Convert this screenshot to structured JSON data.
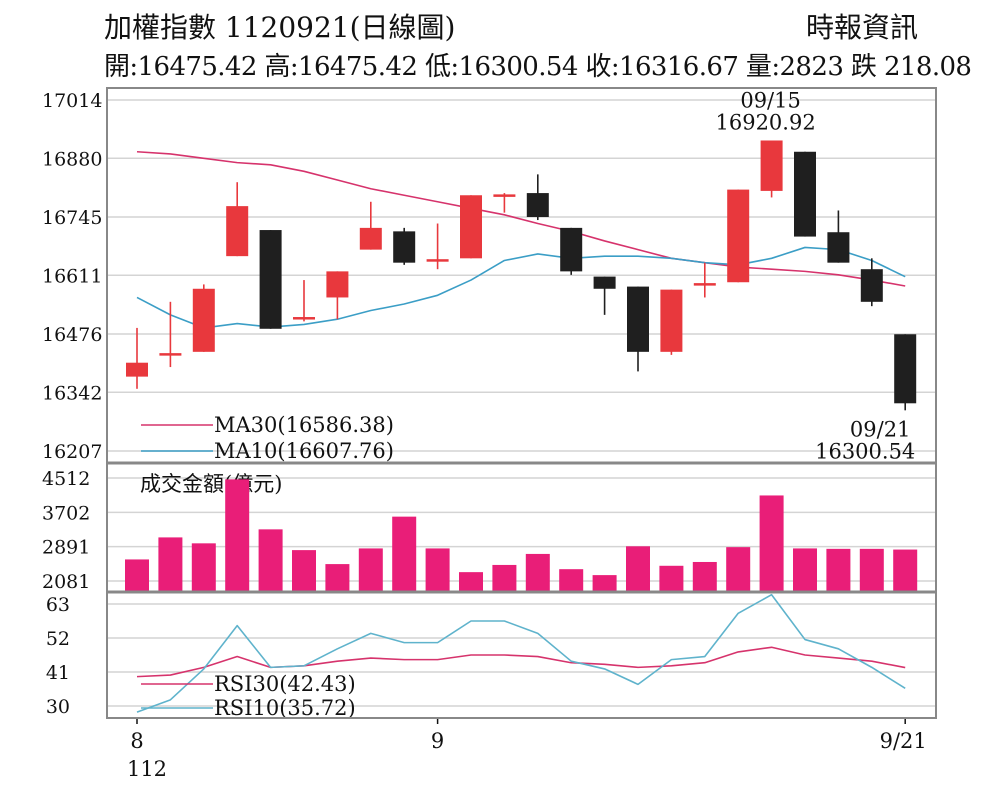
{
  "header": {
    "title": "加權指數 1120921(日線圖)",
    "source": "時報資訊",
    "ohlc": "開:16475.42 高:16475.42 低:16300.54 收:16316.67 量:2823 跌 218.08"
  },
  "colors": {
    "up": "#e8383d",
    "down": "#1f1f1f",
    "ma30": "#d6336c",
    "ma10": "#3b9ec6",
    "volume": "#e91e78",
    "rsi30": "#d6336c",
    "rsi10": "#5fb3cc",
    "grid": "#d4d4d4",
    "frame": "#888888"
  },
  "chart_data": [
    {
      "type": "candlestick",
      "y_ticks": [
        17014,
        16880,
        16745,
        16611,
        16476,
        16342,
        16207
      ],
      "ylim": [
        16207,
        17014
      ],
      "x_labels": [
        {
          "index": 0,
          "label": "8"
        },
        {
          "index": 9,
          "label": "9"
        },
        {
          "index": 23,
          "label": "9/21"
        }
      ],
      "x_sublabel": "112",
      "candles": [
        {
          "open": 16378,
          "close": 16410,
          "high": 16490,
          "low": 16350
        },
        {
          "open": 16428,
          "close": 16432,
          "high": 16550,
          "low": 16400
        },
        {
          "open": 16435,
          "close": 16580,
          "high": 16590,
          "low": 16435
        },
        {
          "open": 16655,
          "close": 16770,
          "high": 16825,
          "low": 16655
        },
        {
          "open": 16715,
          "close": 16488,
          "high": 16715,
          "low": 16488
        },
        {
          "open": 16510,
          "close": 16515,
          "high": 16600,
          "low": 16505
        },
        {
          "open": 16560,
          "close": 16620,
          "high": 16620,
          "low": 16510
        },
        {
          "open": 16670,
          "close": 16720,
          "high": 16780,
          "low": 16670
        },
        {
          "open": 16712,
          "close": 16640,
          "high": 16720,
          "low": 16635
        },
        {
          "open": 16645,
          "close": 16648,
          "high": 16730,
          "low": 16625
        },
        {
          "open": 16650,
          "close": 16795,
          "high": 16795,
          "low": 16650
        },
        {
          "open": 16793,
          "close": 16797,
          "high": 16800,
          "low": 16755
        },
        {
          "open": 16800,
          "close": 16745,
          "high": 16843,
          "low": 16738
        },
        {
          "open": 16720,
          "close": 16620,
          "high": 16720,
          "low": 16612
        },
        {
          "open": 16608,
          "close": 16580,
          "high": 16608,
          "low": 16520
        },
        {
          "open": 16585,
          "close": 16435,
          "high": 16585,
          "low": 16390
        },
        {
          "open": 16435,
          "close": 16578,
          "high": 16578,
          "low": 16428
        },
        {
          "open": 16590,
          "close": 16593,
          "high": 16640,
          "low": 16560
        },
        {
          "open": 16595,
          "close": 16808,
          "high": 16808,
          "low": 16595
        },
        {
          "open": 16805,
          "close": 16920.92,
          "high": 16920.92,
          "low": 16790
        },
        {
          "open": 16895,
          "close": 16700,
          "high": 16895,
          "low": 16700
        },
        {
          "open": 16710,
          "close": 16640,
          "high": 16760,
          "low": 16640
        },
        {
          "open": 16625,
          "close": 16550,
          "high": 16650,
          "low": 16540
        },
        {
          "open": 16475.42,
          "close": 16316.67,
          "high": 16475.42,
          "low": 16300.54
        }
      ],
      "ma30": [
        16895,
        16890,
        16880,
        16870,
        16865,
        16850,
        16830,
        16810,
        16795,
        16780,
        16765,
        16750,
        16730,
        16712,
        16690,
        16670,
        16650,
        16640,
        16630,
        16625,
        16620,
        16612,
        16600,
        16586.38
      ],
      "ma10": [
        16560,
        16520,
        16490,
        16500,
        16492,
        16498,
        16510,
        16530,
        16545,
        16565,
        16600,
        16645,
        16660,
        16650,
        16655,
        16655,
        16650,
        16640,
        16635,
        16650,
        16675,
        16670,
        16645,
        16607.76
      ],
      "annotations": [
        {
          "index": 19,
          "date": "09/15",
          "value": "16920.92",
          "position": "above"
        },
        {
          "index": 23,
          "date": "09/21",
          "value": "16300.54",
          "position": "below"
        }
      ],
      "legend": [
        {
          "name": "MA30(16586.38)",
          "color_key": "ma30"
        },
        {
          "name": "MA10(16607.76)",
          "color_key": "ma10"
        }
      ]
    },
    {
      "type": "bar",
      "title": "成交金額(億元)",
      "y_ticks": [
        4512,
        3702,
        2891,
        2081
      ],
      "ylim": [
        2081,
        4512
      ],
      "values": [
        2590,
        3110,
        2970,
        4480,
        3300,
        2810,
        2480,
        2850,
        3600,
        2850,
        2290,
        2460,
        2720,
        2360,
        2220,
        2900,
        2440,
        2530,
        2880,
        4100,
        2850,
        2840,
        2840,
        2823
      ]
    },
    {
      "type": "line",
      "y_ticks": [
        63,
        52,
        41,
        30
      ],
      "ylim": [
        30,
        63
      ],
      "rsi30": [
        39.5,
        40,
        42.5,
        46,
        42.5,
        43,
        44.5,
        45.5,
        45,
        45,
        46.5,
        46.5,
        46,
        44,
        43.5,
        42.5,
        43,
        44,
        47.5,
        49,
        46.5,
        45.5,
        44.5,
        42.43
      ],
      "rsi10": [
        28,
        32,
        42,
        56,
        42.5,
        43,
        48.5,
        53.5,
        50.5,
        50.5,
        57.5,
        57.5,
        53.5,
        44.5,
        42,
        37,
        45,
        46,
        60,
        66,
        51.5,
        48.5,
        42.5,
        35.72
      ],
      "legend": [
        {
          "name": "RSI30(42.43)",
          "color_key": "rsi30"
        },
        {
          "name": "RSI10(35.72)",
          "color_key": "rsi10"
        }
      ]
    }
  ]
}
